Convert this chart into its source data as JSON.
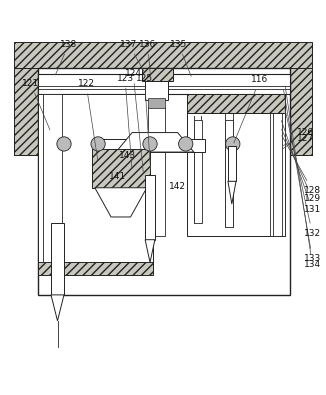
{
  "bg": "white",
  "lc": "#222222",
  "hc": "#c8c8be",
  "lw": 0.7,
  "label_fs": 6.5
}
